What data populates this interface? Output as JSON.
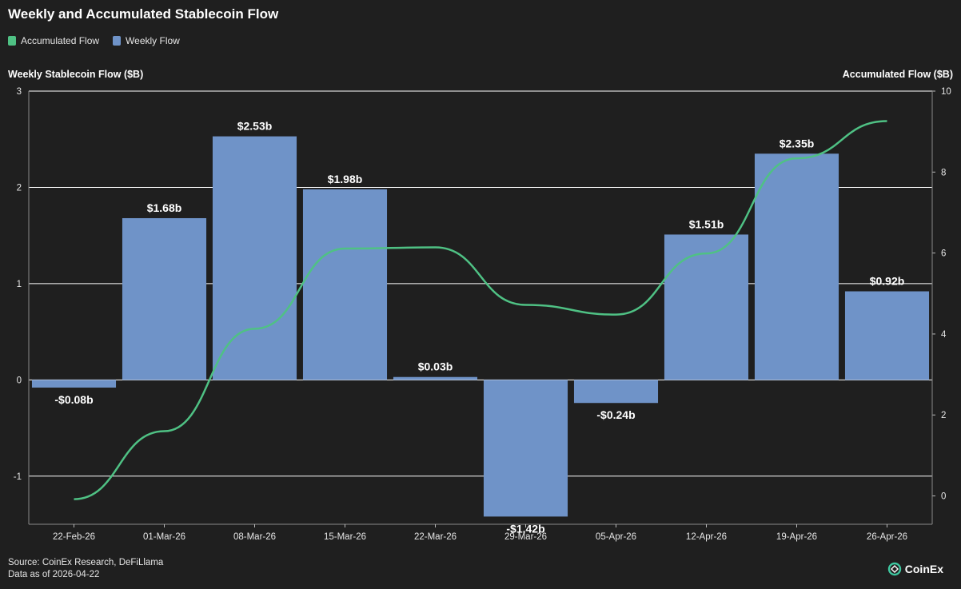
{
  "title": "Weekly and Accumulated Stablecoin Flow",
  "legend": {
    "accumulated_label": "Accumulated Flow",
    "weekly_label": "Weekly Flow"
  },
  "colors": {
    "accumulated": "#4fc184",
    "weekly": "#6f93c8",
    "background": "#1f1f1f",
    "grid": "#ffffff"
  },
  "chart_data": {
    "type": "bar",
    "title": "Weekly and Accumulated Stablecoin Flow",
    "ylabel_left": "Weekly Stablecoin Flow ($B)",
    "ylabel_right": "Accumulated Flow ($B)",
    "categories": [
      "22-Feb-26",
      "01-Mar-26",
      "08-Mar-26",
      "15-Mar-26",
      "22-Mar-26",
      "29-Mar-26",
      "05-Apr-26",
      "12-Apr-26",
      "19-Apr-26",
      "26-Apr-26"
    ],
    "ylim_left": [
      -1.5,
      3
    ],
    "yticks_left": [
      -1,
      0,
      1,
      2,
      3
    ],
    "ylim_right": [
      -0.7,
      10
    ],
    "yticks_right": [
      0,
      2,
      4,
      6,
      8,
      10
    ],
    "series": [
      {
        "name": "Weekly Flow",
        "type": "bar",
        "axis": "left",
        "values": [
          -0.08,
          1.68,
          2.53,
          1.98,
          0.03,
          -1.42,
          -0.24,
          1.51,
          2.35,
          0.92
        ],
        "labels": [
          "-$0.08b",
          "$1.68b",
          "$2.53b",
          "$1.98b",
          "$0.03b",
          "-$1.42b",
          "-$0.24b",
          "$1.51b",
          "$2.35b",
          "$0.92b"
        ]
      },
      {
        "name": "Accumulated Flow",
        "type": "line",
        "axis": "right",
        "values": [
          -0.08,
          1.6,
          4.13,
          6.11,
          6.14,
          4.72,
          4.48,
          5.99,
          8.34,
          9.26
        ]
      }
    ]
  },
  "footer": {
    "source": "Source: CoinEx Research, DeFiLlama",
    "data_as_of": "Data as of 2026-04-22"
  },
  "brand": {
    "name": "CoinEx"
  }
}
